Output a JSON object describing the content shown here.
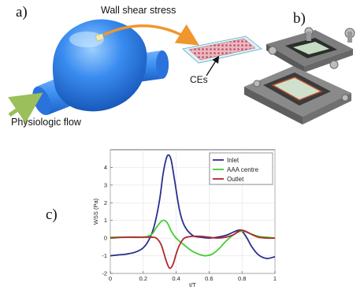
{
  "panels": {
    "a": "a)",
    "b": "b)",
    "c": "c)"
  },
  "labels": {
    "wall_shear_stress": "Wall shear stress",
    "physiologic_flow": "Physiologic flow",
    "ces": "CEs"
  },
  "colors": {
    "aneurysm": "#3a8cf0",
    "arrow_orange": "#f0962d",
    "flow_arrow": "#9bbf5a",
    "inlet": "#2a2f8f",
    "aaa_centre": "#44cc33",
    "outlet": "#b3262b"
  },
  "chart_data": {
    "type": "line",
    "xlabel": "t/T",
    "ylabel": "WSS (Pa)",
    "xlim": [
      0,
      1
    ],
    "ylim": [
      -2,
      5
    ],
    "x_ticks": [
      "0",
      "0.2",
      "0.4",
      "0.6",
      "0.8",
      "1"
    ],
    "y_ticks": [
      "-2",
      "-1",
      "0",
      "1",
      "2",
      "3",
      "4"
    ],
    "legend_position": "top-right",
    "series": [
      {
        "name": "Inlet",
        "color": "#2a2f8f",
        "x": [
          0,
          0.05,
          0.1,
          0.15,
          0.2,
          0.24,
          0.27,
          0.3,
          0.32,
          0.34,
          0.355,
          0.37,
          0.39,
          0.42,
          0.45,
          0.5,
          0.55,
          0.6,
          0.65,
          0.7,
          0.75,
          0.78,
          0.8,
          0.83,
          0.86,
          0.9,
          0.95,
          1.0
        ],
        "y": [
          -1.0,
          -0.95,
          -0.9,
          -0.8,
          -0.55,
          0.0,
          0.8,
          2.2,
          3.6,
          4.5,
          4.7,
          4.4,
          3.3,
          1.6,
          0.7,
          0.15,
          0.05,
          0.0,
          0.05,
          0.15,
          0.35,
          0.45,
          0.4,
          0.0,
          -0.5,
          -0.95,
          -1.15,
          -1.05
        ]
      },
      {
        "name": "AAA centre",
        "color": "#44cc33",
        "x": [
          0,
          0.1,
          0.2,
          0.25,
          0.28,
          0.31,
          0.33,
          0.35,
          0.37,
          0.4,
          0.45,
          0.5,
          0.55,
          0.58,
          0.62,
          0.66,
          0.7,
          0.75,
          0.8,
          0.85,
          0.9,
          0.95,
          1.0
        ],
        "y": [
          0.05,
          0.05,
          0.05,
          0.2,
          0.6,
          0.95,
          1.0,
          0.8,
          0.4,
          0.0,
          -0.4,
          -0.75,
          -0.95,
          -1.0,
          -0.9,
          -0.6,
          -0.2,
          0.2,
          0.4,
          0.25,
          0.1,
          0.05,
          0.0
        ]
      },
      {
        "name": "Outlet",
        "color": "#b3262b",
        "x": [
          0,
          0.1,
          0.2,
          0.25,
          0.28,
          0.31,
          0.34,
          0.36,
          0.38,
          0.4,
          0.42,
          0.45,
          0.5,
          0.55,
          0.6,
          0.65,
          0.7,
          0.75,
          0.78,
          0.8,
          0.83,
          0.86,
          0.9,
          0.95,
          1.0
        ],
        "y": [
          0.0,
          0.05,
          0.05,
          0.05,
          0.0,
          -0.4,
          -1.3,
          -1.7,
          -1.5,
          -0.9,
          -0.4,
          0.0,
          0.1,
          0.1,
          0.05,
          0.0,
          0.05,
          0.2,
          0.4,
          0.45,
          0.35,
          0.2,
          0.05,
          0.0,
          0.0
        ]
      }
    ]
  }
}
